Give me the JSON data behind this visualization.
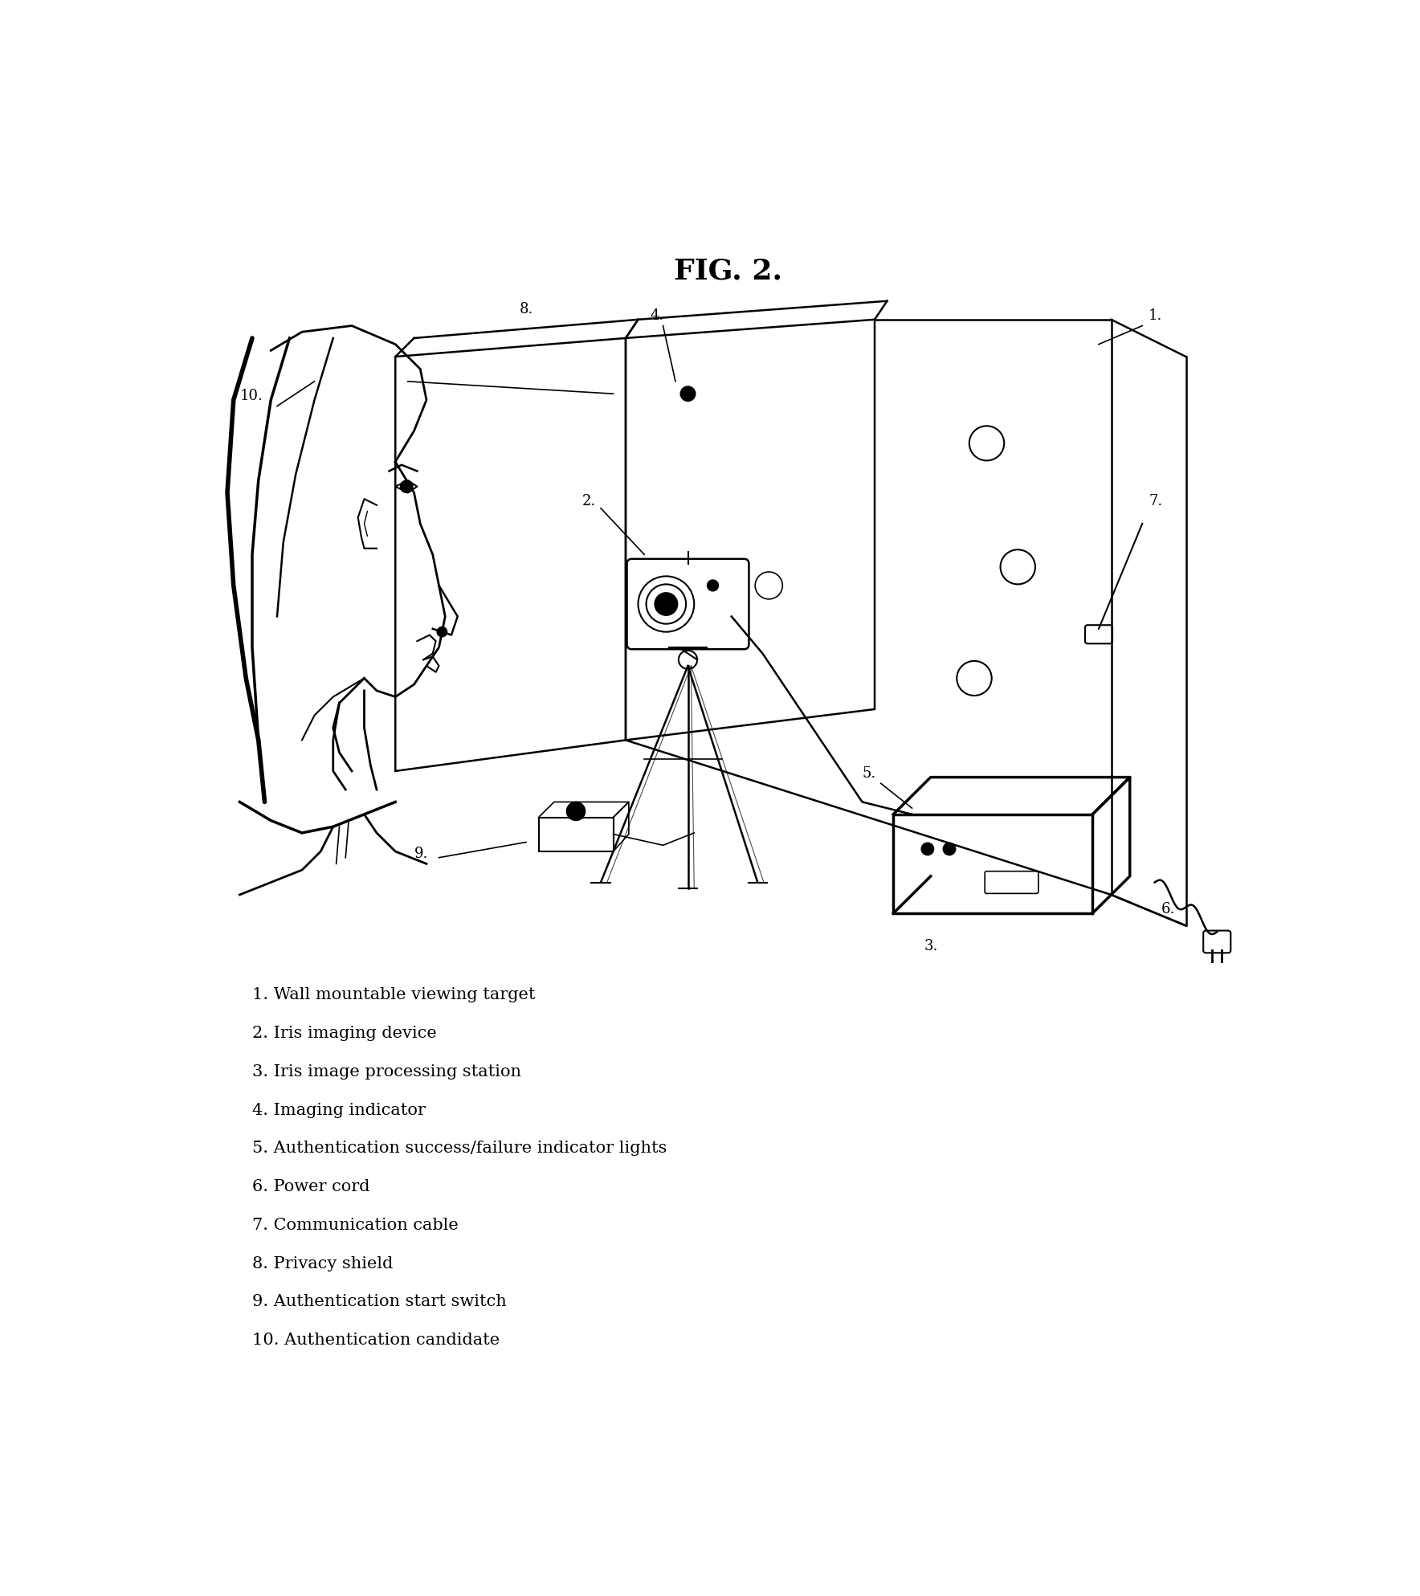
{
  "title": "FIG. 2.",
  "title_fontsize": 26,
  "title_fontweight": "bold",
  "background_color": "#ffffff",
  "legend_items": [
    "1. Wall mountable viewing target",
    "2. Iris imaging device",
    "3. Iris image processing station",
    "4. Imaging indicator",
    "5. Authentication success/failure indicator lights",
    "6. Power cord",
    "7. Communication cable",
    "8. Privacy shield",
    "9. Authentication start switch",
    "10. Authentication candidate"
  ],
  "legend_fontsize": 15,
  "label_fontsize": 13,
  "fig_width": 17.68,
  "fig_height": 19.87
}
